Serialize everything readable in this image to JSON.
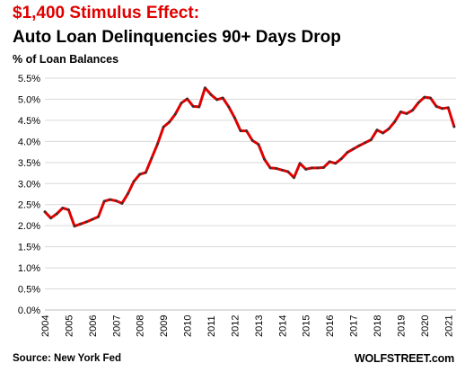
{
  "header": {
    "title_line1": "$1,400 Stimulus  Effect:",
    "title_line2": "Auto Loan Delinquencies 90+ Days Drop",
    "subtitle": "% of Loan Balances"
  },
  "footer": {
    "source": "Source: New York Fed",
    "brand": "WOLFSTREET.com"
  },
  "colors": {
    "line": "#e00000",
    "markers": "#333333",
    "grid": "#d9d9d9",
    "title_accent": "#e00000"
  },
  "chart_data": {
    "type": "line",
    "title": "$1,400 Stimulus  Effect: Auto Loan Delinquencies 90+ Days Drop",
    "ylabel": "% of Loan Balances",
    "xlabel": "",
    "ylim": [
      0,
      5.5
    ],
    "xlim": [
      2004,
      2021.33
    ],
    "grid": "horizontal",
    "y_ticks": [
      "0.0%",
      "0.5%",
      "1.0%",
      "1.5%",
      "2.0%",
      "2.5%",
      "3.0%",
      "3.5%",
      "4.0%",
      "4.5%",
      "5.0%",
      "5.5%"
    ],
    "x_ticks": [
      "2004",
      "2005",
      "2006",
      "2007",
      "2008",
      "2009",
      "2010",
      "2011",
      "2012",
      "2013",
      "2014",
      "2015",
      "2016",
      "2017",
      "2018",
      "2019",
      "2020",
      "2021"
    ],
    "series": [
      {
        "x": [
          2004.0,
          2004.25,
          2004.5,
          2004.75,
          2005.0,
          2005.25,
          2005.5,
          2005.75,
          2006.0,
          2006.25,
          2006.5,
          2006.75,
          2007.0,
          2007.25,
          2007.5,
          2007.75,
          2008.0,
          2008.25,
          2008.5,
          2008.75,
          2009.0,
          2009.25,
          2009.5,
          2009.75,
          2010.0,
          2010.25,
          2010.5,
          2010.75,
          2011.0,
          2011.25,
          2011.5,
          2011.75,
          2012.0,
          2012.25,
          2012.5,
          2012.75,
          2013.0,
          2013.25,
          2013.5,
          2013.75,
          2014.0,
          2014.25,
          2014.5,
          2014.75,
          2015.0,
          2015.25,
          2015.5,
          2015.75,
          2016.0,
          2016.25,
          2016.5,
          2016.75,
          2017.0,
          2017.25,
          2017.5,
          2017.75,
          2018.0,
          2018.25,
          2018.5,
          2018.75,
          2019.0,
          2019.25,
          2019.5,
          2019.75,
          2020.0,
          2020.25,
          2020.5,
          2020.75,
          2021.0,
          2021.25
        ],
        "values": [
          2.33,
          2.18,
          2.28,
          2.42,
          2.38,
          1.99,
          2.04,
          2.09,
          2.15,
          2.21,
          2.58,
          2.62,
          2.59,
          2.53,
          2.76,
          3.05,
          3.22,
          3.26,
          3.6,
          3.94,
          4.34,
          4.46,
          4.65,
          4.91,
          5.01,
          4.83,
          4.82,
          5.27,
          5.11,
          4.99,
          5.03,
          4.82,
          4.56,
          4.25,
          4.25,
          4.02,
          3.93,
          3.58,
          3.37,
          3.36,
          3.32,
          3.28,
          3.14,
          3.48,
          3.34,
          3.37,
          3.37,
          3.38,
          3.52,
          3.48,
          3.59,
          3.74,
          3.82,
          3.9,
          3.97,
          4.04,
          4.27,
          4.2,
          4.3,
          4.47,
          4.7,
          4.66,
          4.74,
          4.92,
          5.05,
          5.03,
          4.83,
          4.78,
          4.8,
          4.35
        ]
      }
    ]
  }
}
